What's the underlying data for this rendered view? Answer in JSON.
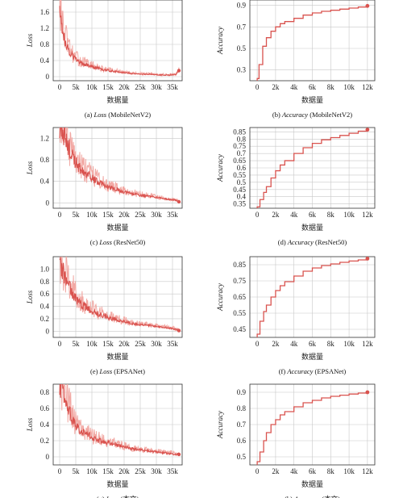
{
  "figure": {
    "x_label": "数据量",
    "loss_ylabel": "Loss",
    "acc_ylabel": "Accuracy",
    "line_color": "#d9534f",
    "band_color": "#f2a9a4"
  },
  "chart_data": [
    {
      "type": "line",
      "caption_prefix": "(a) ",
      "caption_metric": "Loss",
      "caption_model": " (MobileNetV2)",
      "ylabel": "Loss",
      "xlabel": "数据量",
      "xlim": [
        -2000,
        38000
      ],
      "ylim": [
        -0.1,
        1.9
      ],
      "x_ticks": [
        0,
        5000,
        10000,
        15000,
        20000,
        25000,
        30000,
        35000
      ],
      "x_tick_labels": [
        "0",
        "5k",
        "10k",
        "15k",
        "20k",
        "25k",
        "30k",
        "35k"
      ],
      "y_ticks": [
        0,
        0.4,
        0.8,
        1.2,
        1.6
      ],
      "y_tick_labels": [
        "0",
        "0.4",
        "0.8",
        "1.2",
        "1.6"
      ],
      "series": [
        {
          "x": [
            0,
            1000,
            2000,
            3000,
            4000,
            5000,
            6000,
            8000,
            10000,
            12000,
            14000,
            16000,
            18000,
            20000,
            22000,
            24000,
            26000,
            28000,
            30000,
            32000,
            34000,
            36000,
            37000
          ],
          "y": [
            1.75,
            1.05,
            0.82,
            0.62,
            0.5,
            0.42,
            0.36,
            0.3,
            0.25,
            0.2,
            0.16,
            0.14,
            0.12,
            0.1,
            0.08,
            0.07,
            0.06,
            0.06,
            0.05,
            0.04,
            0.04,
            0.05,
            0.15
          ]
        }
      ]
    },
    {
      "type": "line",
      "caption_prefix": "(b) ",
      "caption_metric": "Accuracy",
      "caption_model": " (MobileNetV2)",
      "ylabel": "Accuracy",
      "xlabel": "数据量",
      "xlim": [
        -800,
        12800
      ],
      "ylim": [
        0.2,
        0.95
      ],
      "x_ticks": [
        0,
        2000,
        4000,
        6000,
        8000,
        10000,
        12000
      ],
      "x_tick_labels": [
        "0",
        "2k",
        "4k",
        "6k",
        "8k",
        "10k",
        "12k"
      ],
      "y_ticks": [
        0.3,
        0.5,
        0.7,
        0.9
      ],
      "y_tick_labels": [
        "0.3",
        "0.5",
        "0.7",
        "0.9"
      ],
      "series": [
        {
          "x": [
            0,
            200,
            600,
            1000,
            1500,
            2000,
            2500,
            3000,
            4000,
            5000,
            6000,
            7000,
            8000,
            9000,
            10000,
            11000,
            12000
          ],
          "y": [
            0.22,
            0.35,
            0.52,
            0.6,
            0.66,
            0.7,
            0.73,
            0.75,
            0.78,
            0.81,
            0.83,
            0.845,
            0.855,
            0.865,
            0.875,
            0.885,
            0.895
          ]
        }
      ]
    },
    {
      "type": "line",
      "caption_prefix": "(c) ",
      "caption_metric": "Loss",
      "caption_model": " (ResNet50)",
      "ylabel": "Loss",
      "xlabel": "数据量",
      "xlim": [
        -2000,
        38000
      ],
      "ylim": [
        -0.1,
        1.4
      ],
      "x_ticks": [
        0,
        5000,
        10000,
        15000,
        20000,
        25000,
        30000,
        35000
      ],
      "x_tick_labels": [
        "0",
        "5k",
        "10k",
        "15k",
        "20k",
        "25k",
        "30k",
        "35k"
      ],
      "y_ticks": [
        0,
        0.4,
        0.8,
        1.2
      ],
      "y_tick_labels": [
        "0",
        "0.4",
        "0.8",
        "1.2"
      ],
      "series": [
        {
          "x": [
            0,
            1000,
            2000,
            3000,
            4000,
            5000,
            6000,
            8000,
            10000,
            12000,
            14000,
            16000,
            18000,
            20000,
            22000,
            24000,
            26000,
            28000,
            30000,
            32000,
            34000,
            36000,
            37000
          ],
          "y": [
            1.4,
            1.3,
            1.15,
            1.0,
            0.85,
            0.75,
            0.65,
            0.55,
            0.45,
            0.38,
            0.32,
            0.27,
            0.24,
            0.2,
            0.18,
            0.15,
            0.13,
            0.12,
            0.1,
            0.08,
            0.06,
            0.05,
            0.02
          ]
        }
      ]
    },
    {
      "type": "line",
      "caption_prefix": "(d) ",
      "caption_metric": "Accuracy",
      "caption_model": " (ResNet50)",
      "ylabel": "Accuracy",
      "xlabel": "数据量",
      "xlim": [
        -800,
        12800
      ],
      "ylim": [
        0.32,
        0.88
      ],
      "x_ticks": [
        0,
        2000,
        4000,
        6000,
        8000,
        10000,
        12000
      ],
      "x_tick_labels": [
        "0",
        "2k",
        "4k",
        "6k",
        "8k",
        "10k",
        "12k"
      ],
      "y_ticks": [
        0.35,
        0.4,
        0.45,
        0.5,
        0.55,
        0.6,
        0.65,
        0.7,
        0.75,
        0.8,
        0.85
      ],
      "y_tick_labels": [
        "0.35",
        "0.4",
        "0.45",
        "0.5",
        "0.55",
        "0.6",
        "0.65",
        "0.7",
        "0.75",
        "0.8",
        "0.85"
      ],
      "series": [
        {
          "x": [
            0,
            300,
            700,
            1000,
            1500,
            2000,
            2500,
            3000,
            4000,
            5000,
            6000,
            7000,
            8000,
            9000,
            10000,
            11000,
            12000
          ],
          "y": [
            0.33,
            0.38,
            0.43,
            0.47,
            0.53,
            0.58,
            0.62,
            0.65,
            0.7,
            0.74,
            0.77,
            0.795,
            0.81,
            0.825,
            0.84,
            0.855,
            0.865
          ]
        }
      ]
    },
    {
      "type": "line",
      "caption_prefix": "(e) ",
      "caption_metric": "Loss",
      "caption_model": " (EPSANet)",
      "ylabel": "Loss",
      "xlabel": "数据量",
      "xlim": [
        -2000,
        38000
      ],
      "ylim": [
        -0.1,
        1.2
      ],
      "x_ticks": [
        0,
        5000,
        10000,
        15000,
        20000,
        25000,
        30000,
        35000
      ],
      "x_tick_labels": [
        "0",
        "5k",
        "10k",
        "15k",
        "20k",
        "25k",
        "30k",
        "35k"
      ],
      "y_ticks": [
        0,
        0.2,
        0.4,
        0.6,
        0.8,
        1.0
      ],
      "y_tick_labels": [
        "0",
        "0.2",
        "0.4",
        "0.6",
        "0.8",
        "1.0"
      ],
      "series": [
        {
          "x": [
            0,
            1000,
            2000,
            3000,
            4000,
            5000,
            6000,
            8000,
            10000,
            12000,
            14000,
            16000,
            18000,
            20000,
            22000,
            24000,
            26000,
            28000,
            30000,
            32000,
            34000,
            36000,
            37000
          ],
          "y": [
            1.1,
            0.95,
            0.82,
            0.7,
            0.6,
            0.52,
            0.45,
            0.38,
            0.32,
            0.27,
            0.24,
            0.2,
            0.18,
            0.15,
            0.13,
            0.11,
            0.1,
            0.09,
            0.08,
            0.06,
            0.05,
            0.03,
            0.01
          ]
        }
      ]
    },
    {
      "type": "line",
      "caption_prefix": "(f) ",
      "caption_metric": "Accuracy",
      "caption_model": " (EPSANet)",
      "ylabel": "Accuracy",
      "xlabel": "数据量",
      "xlim": [
        -800,
        12800
      ],
      "ylim": [
        0.4,
        0.9
      ],
      "x_ticks": [
        0,
        2000,
        4000,
        6000,
        8000,
        10000,
        12000
      ],
      "x_tick_labels": [
        "0",
        "2k",
        "4k",
        "6k",
        "8k",
        "10k",
        "12k"
      ],
      "y_ticks": [
        0.45,
        0.55,
        0.65,
        0.75,
        0.85
      ],
      "y_tick_labels": [
        "0.45",
        "0.55",
        "0.65",
        "0.75",
        "0.85"
      ],
      "series": [
        {
          "x": [
            0,
            300,
            700,
            1000,
            1500,
            2000,
            2500,
            3000,
            4000,
            5000,
            6000,
            7000,
            8000,
            9000,
            10000,
            11000,
            12000
          ],
          "y": [
            0.42,
            0.5,
            0.56,
            0.6,
            0.65,
            0.69,
            0.72,
            0.745,
            0.78,
            0.81,
            0.83,
            0.845,
            0.855,
            0.865,
            0.873,
            0.88,
            0.888
          ]
        }
      ]
    },
    {
      "type": "line",
      "caption_prefix": "(g) ",
      "caption_metric": "Loss",
      "caption_model": " (本文)",
      "ylabel": "Loss",
      "xlabel": "数据量",
      "xlim": [
        -2000,
        38000
      ],
      "ylim": [
        -0.1,
        0.9
      ],
      "x_ticks": [
        0,
        5000,
        10000,
        15000,
        20000,
        25000,
        30000,
        35000
      ],
      "x_tick_labels": [
        "0",
        "5k",
        "10k",
        "15k",
        "20k",
        "25k",
        "30k",
        "35k"
      ],
      "y_ticks": [
        0,
        0.2,
        0.4,
        0.6,
        0.8
      ],
      "y_tick_labels": [
        "0",
        "0.2",
        "0.4",
        "0.6",
        "0.8"
      ],
      "series": [
        {
          "x": [
            0,
            1000,
            2000,
            3000,
            4000,
            5000,
            6000,
            8000,
            10000,
            12000,
            14000,
            16000,
            18000,
            20000,
            22000,
            24000,
            26000,
            28000,
            30000,
            32000,
            34000,
            36000,
            37000
          ],
          "y": [
            0.85,
            0.8,
            0.7,
            0.55,
            0.45,
            0.38,
            0.33,
            0.28,
            0.24,
            0.2,
            0.18,
            0.16,
            0.14,
            0.12,
            0.1,
            0.09,
            0.08,
            0.07,
            0.06,
            0.05,
            0.04,
            0.03,
            0.03
          ]
        }
      ]
    },
    {
      "type": "line",
      "caption_prefix": "(h) ",
      "caption_metric": "Accuracy",
      "caption_model": " (本文)",
      "ylabel": "Accuracy",
      "xlabel": "数据量",
      "xlim": [
        -800,
        12800
      ],
      "ylim": [
        0.45,
        0.95
      ],
      "x_ticks": [
        0,
        2000,
        4000,
        6000,
        8000,
        10000,
        12000
      ],
      "x_tick_labels": [
        "0",
        "2k",
        "4k",
        "6k",
        "8k",
        "10k",
        "12k"
      ],
      "y_ticks": [
        0.5,
        0.6,
        0.7,
        0.8,
        0.9
      ],
      "y_tick_labels": [
        "0.5",
        "0.6",
        "0.7",
        "0.8",
        "0.9"
      ],
      "series": [
        {
          "x": [
            0,
            300,
            700,
            1000,
            1500,
            2000,
            2500,
            3000,
            4000,
            5000,
            6000,
            7000,
            8000,
            9000,
            10000,
            11000,
            12000
          ],
          "y": [
            0.47,
            0.53,
            0.6,
            0.65,
            0.7,
            0.73,
            0.76,
            0.78,
            0.81,
            0.835,
            0.85,
            0.865,
            0.875,
            0.882,
            0.889,
            0.895,
            0.9
          ]
        }
      ]
    }
  ]
}
